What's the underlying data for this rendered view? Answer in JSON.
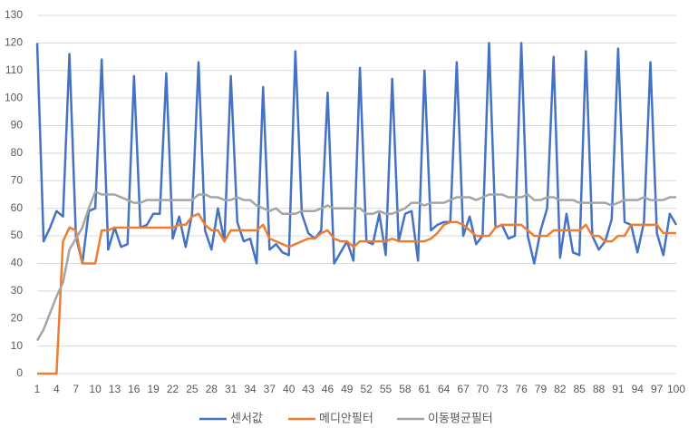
{
  "chart_data": {
    "type": "line",
    "x": [
      1,
      2,
      3,
      4,
      5,
      6,
      7,
      8,
      9,
      10,
      11,
      12,
      13,
      14,
      15,
      16,
      17,
      18,
      19,
      20,
      21,
      22,
      23,
      24,
      25,
      26,
      27,
      28,
      29,
      30,
      31,
      32,
      33,
      34,
      35,
      36,
      37,
      38,
      39,
      40,
      41,
      42,
      43,
      44,
      45,
      46,
      47,
      48,
      49,
      50,
      51,
      52,
      53,
      54,
      55,
      56,
      57,
      58,
      59,
      60,
      61,
      62,
      63,
      64,
      65,
      66,
      67,
      68,
      69,
      70,
      71,
      72,
      73,
      74,
      75,
      76,
      77,
      78,
      79,
      80,
      81,
      82,
      83,
      84,
      85,
      86,
      87,
      88,
      89,
      90,
      91,
      92,
      93,
      94,
      95,
      96,
      97,
      98,
      99,
      100
    ],
    "xlim": [
      1,
      100
    ],
    "xticks": [
      1,
      4,
      7,
      10,
      13,
      16,
      19,
      22,
      25,
      28,
      31,
      34,
      37,
      40,
      43,
      46,
      49,
      52,
      55,
      58,
      61,
      64,
      67,
      70,
      73,
      76,
      79,
      82,
      85,
      88,
      91,
      94,
      97,
      100
    ],
    "ylim": [
      0,
      130
    ],
    "yticks": [
      0,
      10,
      20,
      30,
      40,
      50,
      60,
      70,
      80,
      90,
      100,
      110,
      120,
      130
    ],
    "grid": true,
    "legend": "bottom",
    "series": [
      {
        "name": "센서값",
        "color": "#4472c4",
        "values": [
          120,
          48,
          53,
          59,
          57,
          116,
          50,
          40,
          59,
          60,
          114,
          45,
          53,
          46,
          47,
          108,
          53,
          54,
          58,
          58,
          109,
          49,
          57,
          46,
          58,
          113,
          52,
          45,
          60,
          48,
          108,
          55,
          48,
          49,
          40,
          104,
          45,
          47,
          44,
          43,
          117,
          58,
          51,
          49,
          52,
          102,
          40,
          44,
          48,
          41,
          111,
          48,
          47,
          58,
          43,
          107,
          48,
          58,
          59,
          41,
          110,
          52,
          54,
          55,
          55,
          113,
          50,
          57,
          47,
          50,
          120,
          53,
          54,
          49,
          50,
          120,
          50,
          40,
          52,
          60,
          115,
          42,
          58,
          44,
          43,
          117,
          50,
          45,
          48,
          56,
          118,
          55,
          54,
          44,
          55,
          113,
          51,
          43,
          58,
          54
        ]
      },
      {
        "name": "메디안필터",
        "color": "#ed7d31",
        "values": [
          0,
          0,
          0,
          0,
          48,
          53,
          52,
          40,
          40,
          40,
          52,
          52,
          53,
          53,
          53,
          53,
          53,
          53,
          53,
          53,
          53,
          53,
          54,
          54,
          57,
          58,
          54,
          52,
          52,
          48,
          52,
          52,
          52,
          52,
          52,
          54,
          49,
          48,
          47,
          46,
          47,
          48,
          49,
          49,
          51,
          52,
          49,
          48,
          48,
          46,
          48,
          48,
          48,
          48,
          48,
          49,
          48,
          48,
          48,
          48,
          48,
          49,
          51,
          54,
          55,
          55,
          54,
          52,
          50,
          50,
          50,
          53,
          54,
          54,
          54,
          54,
          52,
          50,
          50,
          50,
          52,
          52,
          52,
          52,
          52,
          54,
          50,
          50,
          48,
          48,
          50,
          50,
          54,
          54,
          54,
          54,
          54,
          51,
          51,
          51
        ]
      },
      {
        "name": "이동평균필터",
        "color": "#a5a5a5",
        "values": [
          12,
          16,
          22,
          28,
          33,
          45,
          49,
          53,
          60,
          66,
          65,
          65,
          65,
          64,
          63,
          62,
          62,
          63,
          63,
          63,
          63,
          63,
          63,
          63,
          63,
          65,
          65,
          64,
          64,
          63,
          63,
          64,
          63,
          63,
          61,
          60,
          59,
          60,
          58,
          58,
          58,
          59,
          59,
          59,
          60,
          61,
          60,
          60,
          60,
          60,
          60,
          58,
          58,
          59,
          58,
          58,
          59,
          60,
          62,
          62,
          61,
          62,
          62,
          62,
          63,
          64,
          64,
          64,
          63,
          64,
          65,
          65,
          65,
          64,
          64,
          64,
          65,
          63,
          63,
          64,
          64,
          63,
          63,
          63,
          62,
          62,
          62,
          62,
          62,
          61,
          62,
          63,
          63,
          63,
          64,
          63,
          63,
          63,
          64,
          64
        ]
      }
    ]
  }
}
